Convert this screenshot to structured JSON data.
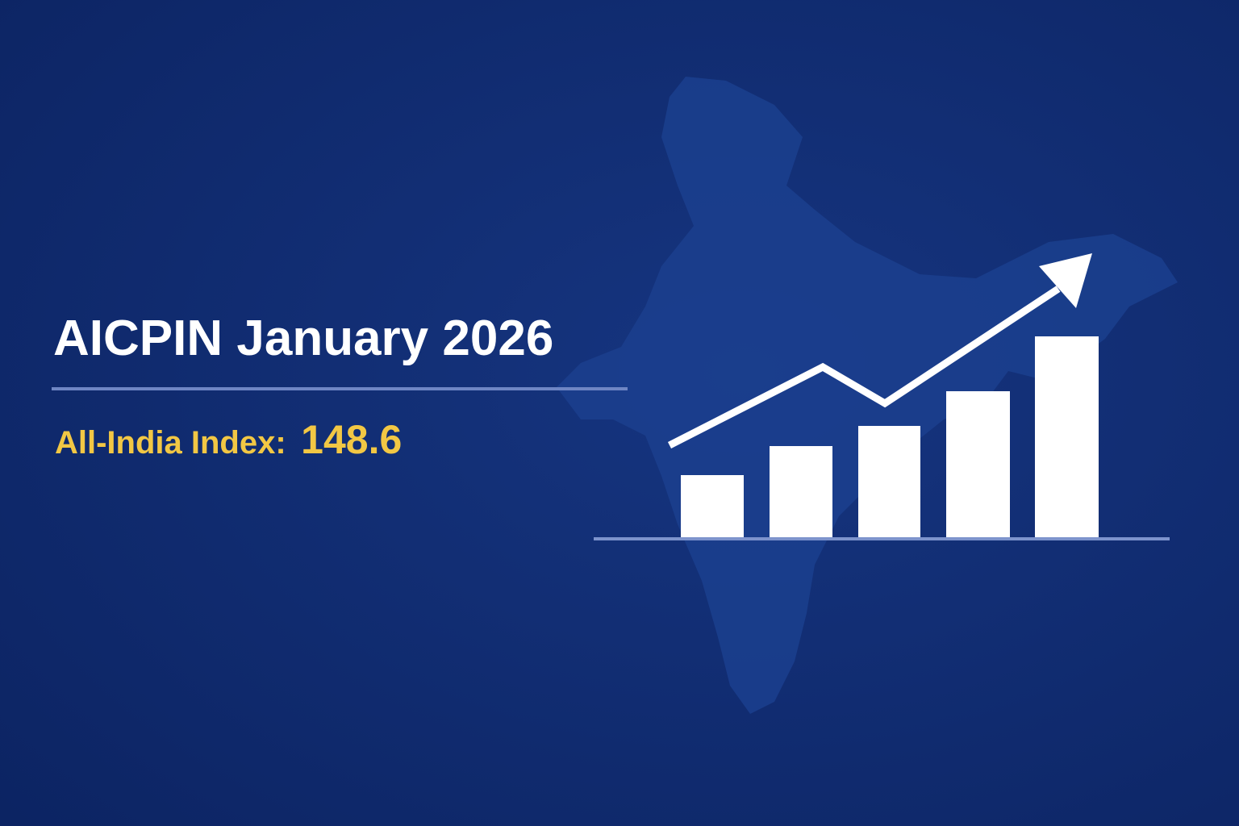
{
  "title": "AICPIN January 2026",
  "index": {
    "label": "All-India Index:",
    "value": 148.6
  }
}
